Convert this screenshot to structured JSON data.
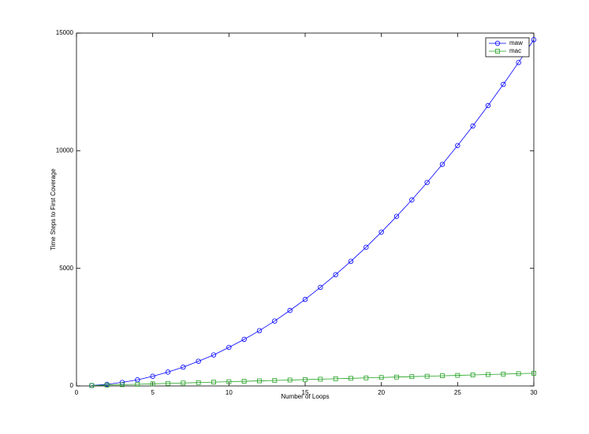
{
  "chart_data": {
    "type": "line",
    "xlabel": "Number of Loops",
    "ylabel": "Time Steps to First Coverage",
    "x": [
      1,
      2,
      3,
      4,
      5,
      6,
      7,
      8,
      9,
      10,
      11,
      12,
      13,
      14,
      15,
      16,
      17,
      18,
      19,
      20,
      21,
      22,
      23,
      24,
      25,
      26,
      27,
      28,
      29,
      30
    ],
    "series": [
      {
        "name": "maw",
        "color": "#0000ff",
        "marker": "circle",
        "values": [
          20,
          70,
          150,
          260,
          410,
          590,
          800,
          1050,
          1320,
          1640,
          1980,
          2350,
          2760,
          3210,
          3680,
          4190,
          4730,
          5300,
          5900,
          6540,
          7210,
          7910,
          8650,
          9420,
          10220,
          11050,
          11920,
          12820,
          13750,
          14720
        ]
      },
      {
        "name": "mac",
        "color": "#1fa01f",
        "marker": "square",
        "values": [
          18,
          36,
          54,
          72,
          90,
          108,
          126,
          144,
          162,
          180,
          198,
          216,
          234,
          252,
          270,
          288,
          306,
          324,
          342,
          360,
          378,
          396,
          414,
          432,
          450,
          468,
          486,
          504,
          522,
          540
        ]
      }
    ],
    "xlim": [
      0,
      30
    ],
    "xticks": [
      0,
      5,
      10,
      15,
      20,
      25,
      30
    ],
    "ylim": [
      0,
      15000
    ],
    "yticks": [
      0,
      5000,
      10000,
      15000
    ],
    "legend": "top-right"
  }
}
